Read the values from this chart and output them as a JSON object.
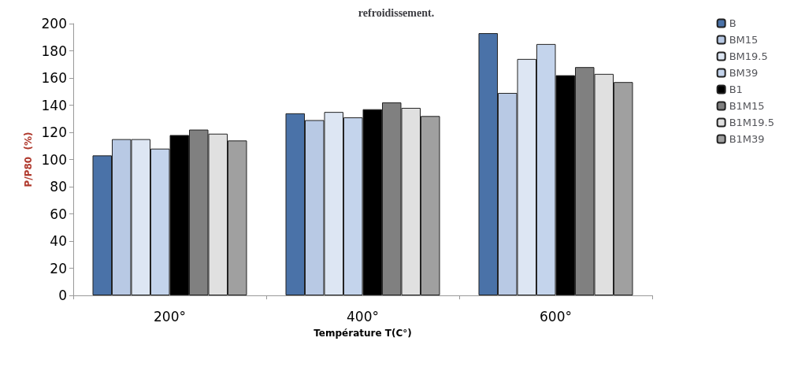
{
  "chart_data": {
    "type": "bar",
    "title": "refroidissement.",
    "xlabel": "Température T(C°)",
    "ylabel": "P/P80  (%)",
    "categories": [
      "200°",
      "400°",
      "600°"
    ],
    "series": [
      {
        "name": "B",
        "color": "#4a72a8",
        "values": [
          103,
          134,
          193
        ]
      },
      {
        "name": "BM15",
        "color": "#b8c9e4",
        "values": [
          115,
          129,
          149
        ]
      },
      {
        "name": "BM19.5",
        "color": "#dde6f3",
        "values": [
          115,
          135,
          174
        ]
      },
      {
        "name": "BM39",
        "color": "#c4d4ec",
        "values": [
          108,
          131,
          185
        ]
      },
      {
        "name": "B1",
        "color": "#000000",
        "values": [
          118,
          137,
          162
        ]
      },
      {
        "name": "B1M15",
        "color": "#808080",
        "values": [
          122,
          142,
          168
        ]
      },
      {
        "name": "B1M19.5",
        "color": "#e0e0e0",
        "values": [
          119,
          138,
          163
        ]
      },
      {
        "name": "B1M39",
        "color": "#a0a0a0",
        "values": [
          114,
          132,
          157
        ]
      }
    ],
    "ylim": [
      0,
      200
    ],
    "yticks": [
      0,
      20,
      40,
      60,
      80,
      100,
      120,
      140,
      160,
      180,
      200
    ],
    "grid": false,
    "legend": "right"
  }
}
